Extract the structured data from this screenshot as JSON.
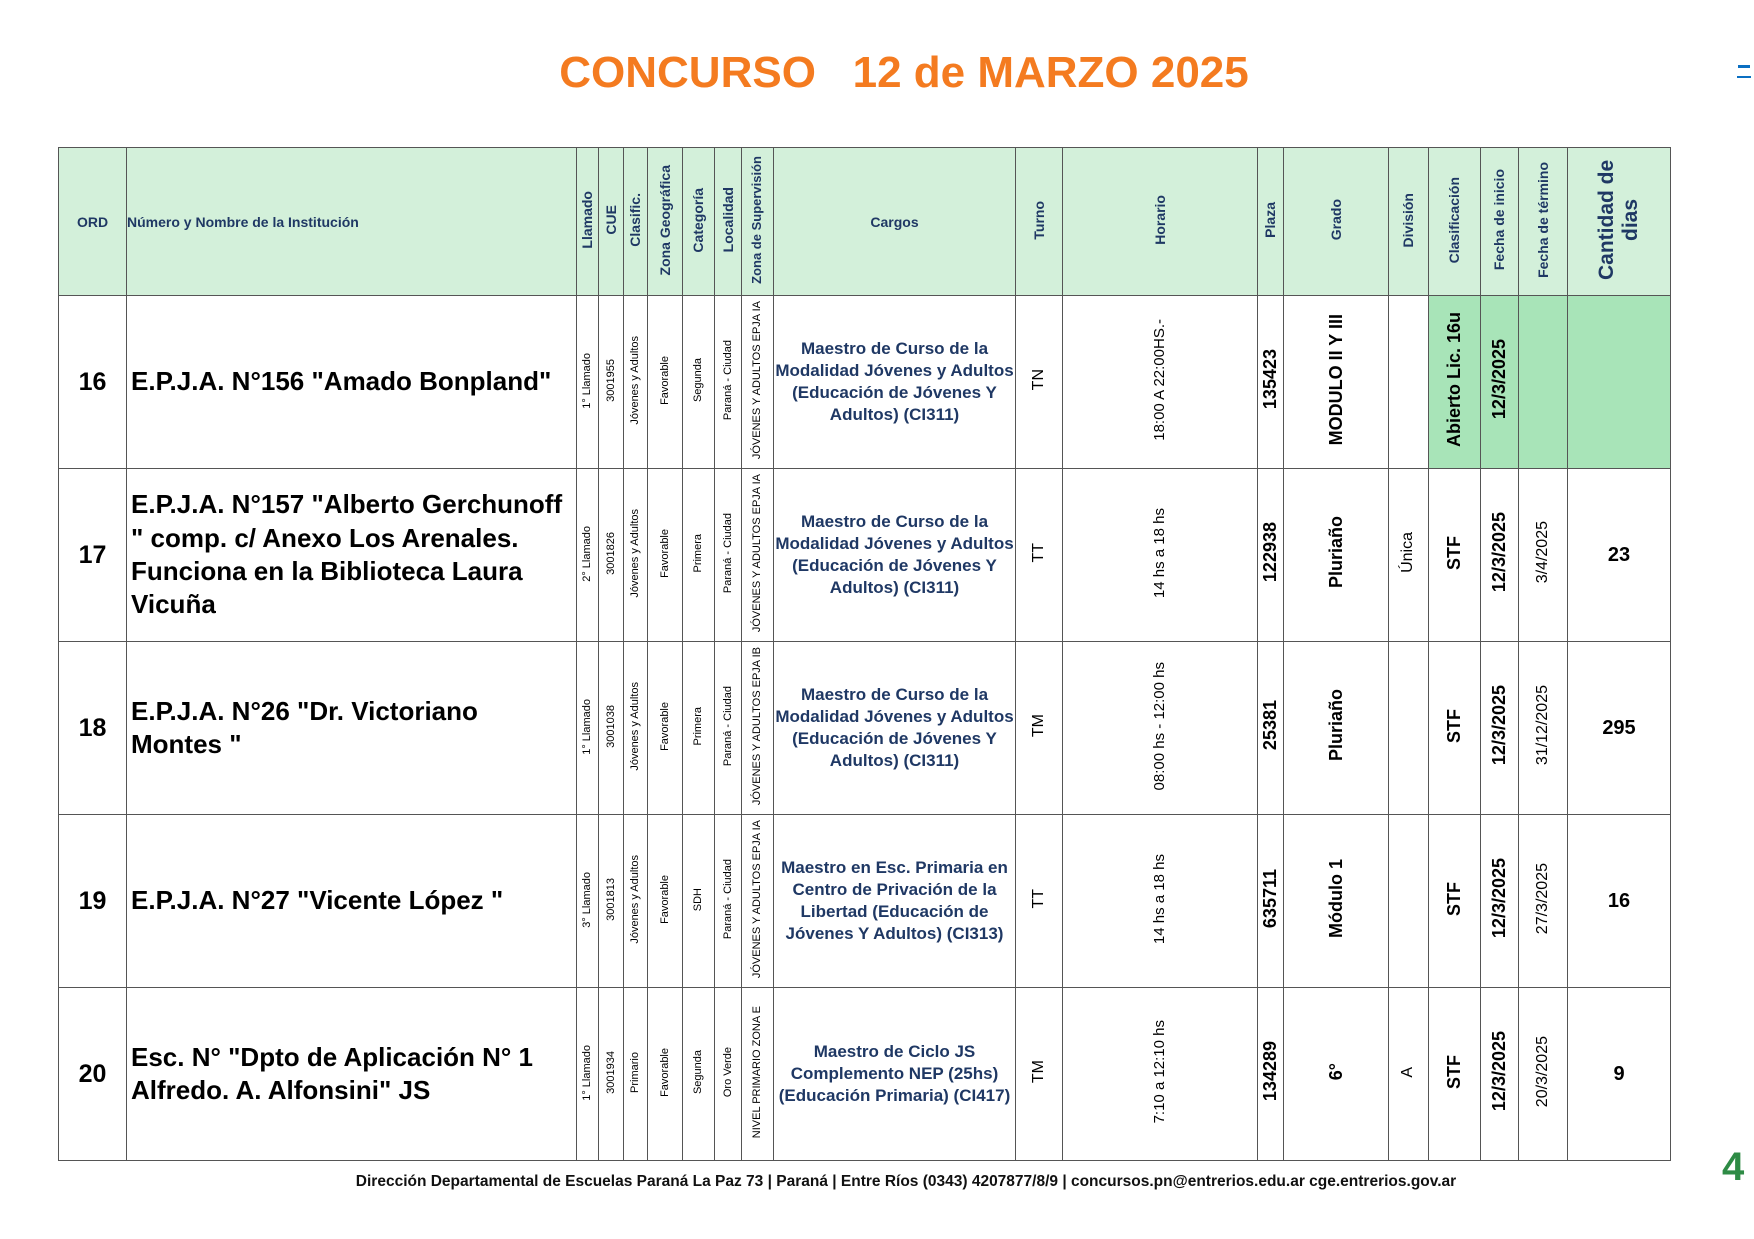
{
  "title": "CONCURSO   12 de MARZO 2025",
  "colors": {
    "title": "#f47b20",
    "header_bg": "#d3f0da",
    "header_text": "#1f3864",
    "highlight": "#a8e4b8",
    "page_number": "#2e8b45"
  },
  "headers": [
    "ORD",
    "Número y Nombre de la Institución",
    "Llamado",
    "CUE",
    "Clasific.",
    "Zona Geográfica",
    "Categoría",
    "Localidad",
    "Zona de Supervisión",
    "Cargos",
    "Turno",
    "Horario",
    "Plaza",
    "Grado",
    "División",
    "Clasificación",
    "Fecha de inicio",
    "Fecha de término",
    "Cantidad de dias"
  ],
  "rows": [
    {
      "ord": "16",
      "institucion": "E.P.J.A. N°156 \"Amado Bonpland\"",
      "llamado": "1° Llamado",
      "cue": "3001955",
      "clasific": "Jóvenes y Adultos",
      "zona_geografica": "Favorable",
      "categoria": "Segunda",
      "localidad": "Paraná - Ciudad",
      "zona_supervision": "JÓVENES Y ADULTOS EPJA IA",
      "cargos": "Maestro de Curso de la Modalidad Jóvenes y Adultos (Educación de Jóvenes Y Adultos) (CI311)",
      "turno": "TN",
      "horario": "18:00 A 22:00HS.-",
      "plaza": "135423",
      "grado": "MODULO II Y III",
      "division": "",
      "clasificacion": "Abierto Lic. 16u",
      "fecha_inicio": "12/3/2025",
      "fecha_termino": "",
      "cantidad_dias": "",
      "highlight": true
    },
    {
      "ord": "17",
      "institucion": "E.P.J.A. N°157 \"Alberto Gerchunoff \" comp. c/ Anexo Los Arenales. Funciona en la Biblioteca Laura Vicuña",
      "llamado": "2° Llamado",
      "cue": "3001826",
      "clasific": "Jóvenes y Adultos",
      "zona_geografica": "Favorable",
      "categoria": "Primera",
      "localidad": "Paraná - Ciudad",
      "zona_supervision": "JÓVENES Y ADULTOS EPJA IA",
      "cargos": "Maestro de Curso de la Modalidad Jóvenes y Adultos (Educación de Jóvenes Y Adultos) (CI311)",
      "turno": "TT",
      "horario": "14 hs a 18 hs",
      "plaza": "122938",
      "grado": "Pluriaño",
      "division": "Única",
      "clasificacion": "STF",
      "fecha_inicio": "12/3/2025",
      "fecha_termino": "3/4/2025",
      "cantidad_dias": "23",
      "highlight": false
    },
    {
      "ord": "18",
      "institucion": "E.P.J.A. N°26 \"Dr. Victoriano Montes \"",
      "llamado": "1° Llamado",
      "cue": "3001038",
      "clasific": "Jóvenes y Adultos",
      "zona_geografica": "Favorable",
      "categoria": "Primera",
      "localidad": "Paraná - Ciudad",
      "zona_supervision": "JÓVENES Y ADULTOS EPJA IB",
      "cargos": "Maestro de Curso de la Modalidad Jóvenes y Adultos (Educación de Jóvenes Y Adultos) (CI311)",
      "turno": "TM",
      "horario": "08:00 hs - 12:00 hs",
      "plaza": "25381",
      "grado": "Pluriaño",
      "division": "",
      "clasificacion": "STF",
      "fecha_inicio": "12/3/2025",
      "fecha_termino": "31/12/2025",
      "cantidad_dias": "295",
      "highlight": false
    },
    {
      "ord": "19",
      "institucion": "E.P.J.A. N°27 \"Vicente López \"",
      "llamado": "3° Llamado",
      "cue": "3001813",
      "clasific": "Jóvenes y Adultos",
      "zona_geografica": "Favorable",
      "categoria": "SDH",
      "localidad": "Paraná - Ciudad",
      "zona_supervision": "JÓVENES Y ADULTOS EPJA IA",
      "cargos": "Maestro en Esc. Primaria en Centro de Privación de la Libertad (Educación de Jóvenes Y Adultos) (CI313)",
      "turno": "TT",
      "horario": "14 hs a 18 hs",
      "plaza": "635711",
      "grado": "Módulo 1",
      "division": "",
      "clasificacion": "STF",
      "fecha_inicio": "12/3/2025",
      "fecha_termino": "27/3/2025",
      "cantidad_dias": "16",
      "highlight": false
    },
    {
      "ord": "20",
      "institucion": "Esc. N° \"Dpto de Aplicación N° 1 Alfredo. A. Alfonsini\" JS",
      "llamado": "1° Llamado",
      "cue": "3001934",
      "clasific": "Primario",
      "zona_geografica": "Favorable",
      "categoria": "Segunda",
      "localidad": "Oro Verde",
      "zona_supervision": "NIVEL PRIMARIO ZONA E",
      "cargos": "Maestro de Ciclo JS Complemento NEP (25hs) (Educación Primaria) (CI417)",
      "turno": "TM",
      "horario": "7:10 a 12:10 hs",
      "plaza": "134289",
      "grado": "6°",
      "division": "A",
      "clasificacion": "STF",
      "fecha_inicio": "12/3/2025",
      "fecha_termino": "20/3/2025",
      "cantidad_dias": "9",
      "highlight": false
    }
  ],
  "footer": "Dirección Departamental de Escuelas Paraná La Paz 73 | Paraná | Entre Ríos (0343) 4207877/8/9 | concursos.pn@entrerios.edu.ar cge.entrerios.gov.ar",
  "page_number": "4"
}
